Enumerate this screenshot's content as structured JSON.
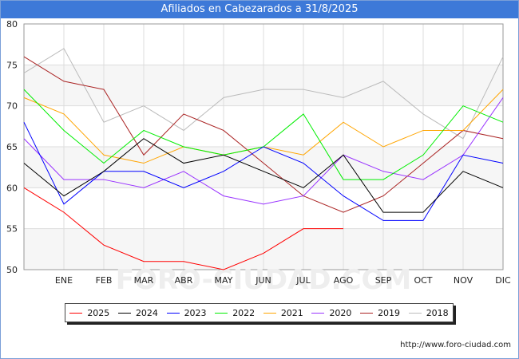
{
  "header": {
    "title": "Afiliados en Cabezarados a 31/8/2025"
  },
  "footer": {
    "url": "http://www.foro-ciudad.com"
  },
  "watermark": "FORO-CIUDAD.COM",
  "chart_data": {
    "type": "line",
    "title": "Afiliados en Cabezarados a 31/8/2025",
    "categories": [
      "",
      "ENE",
      "FEB",
      "MAR",
      "ABR",
      "MAY",
      "JUN",
      "JUL",
      "AGO",
      "SEP",
      "OCT",
      "NOV",
      "DIC"
    ],
    "ylim": [
      50,
      80
    ],
    "yticks": [
      50,
      55,
      60,
      65,
      70,
      75,
      80
    ],
    "grid": true,
    "legend_position": "bottom",
    "series": [
      {
        "name": "2025",
        "color": "#ff0000",
        "values": [
          60,
          57,
          53,
          51,
          51,
          50,
          52,
          55,
          55,
          null,
          null,
          null,
          null
        ]
      },
      {
        "name": "2024",
        "color": "#000000",
        "values": [
          63,
          59,
          62,
          66,
          63,
          64,
          62,
          60,
          64,
          57,
          57,
          62,
          60
        ]
      },
      {
        "name": "2023",
        "color": "#0000ff",
        "values": [
          68,
          58,
          62,
          62,
          60,
          62,
          65,
          63,
          59,
          56,
          56,
          64,
          63
        ]
      },
      {
        "name": "2022",
        "color": "#00ee00",
        "values": [
          72,
          67,
          63,
          67,
          65,
          64,
          65,
          69,
          61,
          61,
          64,
          70,
          68
        ]
      },
      {
        "name": "2021",
        "color": "#ffa500",
        "values": [
          71,
          69,
          64,
          63,
          65,
          64,
          65,
          64,
          68,
          65,
          67,
          67,
          72
        ]
      },
      {
        "name": "2020",
        "color": "#9933ff",
        "values": [
          66,
          61,
          61,
          60,
          62,
          59,
          58,
          59,
          64,
          62,
          61,
          64,
          71
        ]
      },
      {
        "name": "2019",
        "color": "#aa2222",
        "values": [
          76,
          73,
          72,
          64,
          69,
          67,
          63,
          59,
          57,
          59,
          63,
          67,
          66
        ]
      },
      {
        "name": "2018",
        "color": "#bbbbbb",
        "values": [
          74,
          77,
          68,
          70,
          67,
          71,
          72,
          72,
          71,
          73,
          69,
          66,
          76
        ]
      }
    ]
  }
}
